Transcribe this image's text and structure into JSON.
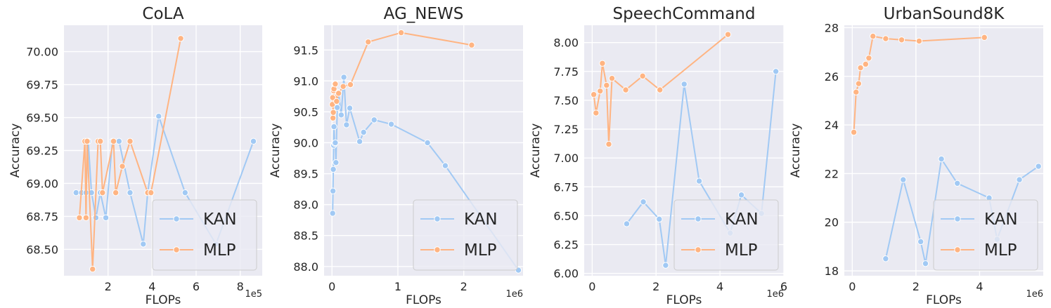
{
  "chart_data": [
    {
      "type": "line",
      "title": "CoLA",
      "xlabel": "FLOPs",
      "ylabel": "Accuracy",
      "x_offset_label": "1e5",
      "xlim": [
        0.0,
        9.0
      ],
      "ylim": [
        68.3,
        70.2
      ],
      "xticks": [
        2,
        4,
        6,
        8
      ],
      "yticks": [
        68.5,
        68.75,
        69.0,
        69.25,
        69.5,
        69.75,
        70.0
      ],
      "ytick_decimals": 2,
      "grid": true,
      "legend": "lower-right",
      "series": [
        {
          "name": "KAN",
          "color": "#a1c9f4",
          "x": [
            0.55,
            0.8,
            1.0,
            1.1,
            1.25,
            1.45,
            1.65,
            1.9,
            2.2,
            2.5,
            3.0,
            3.6,
            3.8,
            4.3,
            5.5,
            6.9,
            8.6
          ],
          "y": [
            68.93,
            68.93,
            68.93,
            69.32,
            68.93,
            68.74,
            68.93,
            68.74,
            69.32,
            69.32,
            68.93,
            68.54,
            68.93,
            69.51,
            68.93,
            68.54,
            69.32
          ]
        },
        {
          "name": "MLP",
          "color": "#ffb482",
          "x": [
            0.7,
            0.95,
            1.0,
            1.05,
            1.3,
            1.55,
            1.65,
            1.75,
            2.25,
            2.35,
            2.65,
            3.0,
            3.8,
            3.95,
            5.3
          ],
          "y": [
            68.74,
            69.32,
            68.74,
            69.32,
            68.35,
            69.32,
            69.32,
            68.93,
            69.32,
            68.93,
            69.13,
            69.32,
            68.93,
            68.93,
            70.1
          ]
        }
      ]
    },
    {
      "type": "line",
      "title": "AG_NEWS",
      "xlabel": "FLOPs",
      "ylabel": "Accuracy",
      "x_offset_label": "1e6",
      "xlim": [
        -0.12,
        2.9
      ],
      "ylim": [
        87.85,
        91.9
      ],
      "xticks": [
        0,
        1,
        2
      ],
      "yticks": [
        88.0,
        88.5,
        89.0,
        89.5,
        90.0,
        90.5,
        91.0,
        91.5
      ],
      "ytick_decimals": 1,
      "grid": true,
      "legend": "lower-right",
      "series": [
        {
          "name": "KAN",
          "color": "#a1c9f4",
          "x": [
            0.01,
            0.015,
            0.02,
            0.025,
            0.03,
            0.04,
            0.05,
            0.06,
            0.08,
            0.1,
            0.14,
            0.18,
            0.22,
            0.27,
            0.42,
            0.48,
            0.64,
            0.9,
            1.45,
            1.72,
            2.83
          ],
          "y": [
            88.86,
            89.22,
            89.57,
            89.96,
            90.26,
            89.99,
            90.0,
            89.68,
            90.57,
            90.81,
            90.45,
            91.06,
            90.29,
            90.56,
            90.02,
            90.17,
            90.37,
            90.3,
            90.0,
            89.63,
            87.94
          ]
        },
        {
          "name": "MLP",
          "color": "#ffb482",
          "x": [
            0.005,
            0.01,
            0.015,
            0.02,
            0.025,
            0.03,
            0.05,
            0.07,
            0.1,
            0.17,
            0.28,
            0.55,
            1.05,
            2.12
          ],
          "y": [
            90.62,
            90.73,
            90.4,
            90.49,
            90.84,
            90.87,
            90.95,
            90.67,
            90.8,
            90.91,
            90.94,
            91.63,
            91.78,
            91.58
          ]
        }
      ]
    },
    {
      "type": "line",
      "title": "SpeechCommand",
      "xlabel": "FLOPs",
      "ylabel": "Accuracy",
      "x_offset_label": "1e6",
      "xlim": [
        -0.25,
        6.0
      ],
      "ylim": [
        5.98,
        8.15
      ],
      "xticks": [
        0,
        2,
        4,
        6
      ],
      "yticks": [
        6.0,
        6.25,
        6.5,
        6.75,
        7.0,
        7.25,
        7.5,
        7.75,
        8.0
      ],
      "ytick_decimals": 2,
      "grid": true,
      "legend": "lower-right",
      "series": [
        {
          "name": "KAN",
          "color": "#a1c9f4",
          "x": [
            1.08,
            1.6,
            2.1,
            2.3,
            2.88,
            3.35,
            4.32,
            4.67,
            5.3,
            5.75
          ],
          "y": [
            6.43,
            6.62,
            6.47,
            6.07,
            7.64,
            6.8,
            6.35,
            6.68,
            6.52,
            7.75
          ]
        },
        {
          "name": "MLP",
          "color": "#ffb482",
          "x": [
            0.05,
            0.12,
            0.25,
            0.32,
            0.45,
            0.52,
            0.62,
            1.05,
            1.58,
            2.12,
            4.25
          ],
          "y": [
            7.55,
            7.39,
            7.58,
            7.82,
            7.63,
            7.12,
            7.69,
            7.59,
            7.71,
            7.59,
            8.07
          ]
        }
      ]
    },
    {
      "type": "line",
      "title": "UrbanSound8K",
      "xlabel": "FLOPs",
      "ylabel": "Accuracy",
      "x_offset_label": "1e6",
      "xlim": [
        -0.25,
        6.0
      ],
      "ylim": [
        17.8,
        28.1
      ],
      "xticks": [
        0,
        2,
        4
      ],
      "yticks": [
        18,
        20,
        22,
        24,
        26,
        28
      ],
      "ytick_decimals": 0,
      "grid": true,
      "legend": "lower-right",
      "series": [
        {
          "name": "KAN",
          "color": "#a1c9f4",
          "x": [
            1.05,
            1.6,
            2.15,
            2.3,
            2.8,
            3.3,
            4.3,
            4.55,
            5.25,
            5.85
          ],
          "y": [
            18.5,
            21.75,
            19.2,
            18.3,
            22.6,
            21.6,
            21.0,
            19.3,
            21.75,
            22.3
          ]
        },
        {
          "name": "MLP",
          "color": "#ffb482",
          "x": [
            0.05,
            0.12,
            0.2,
            0.26,
            0.42,
            0.52,
            0.65,
            1.05,
            1.55,
            2.1,
            4.15
          ],
          "y": [
            23.7,
            25.35,
            25.7,
            26.35,
            26.5,
            26.75,
            27.65,
            27.55,
            27.5,
            27.45,
            27.6
          ]
        }
      ]
    }
  ]
}
